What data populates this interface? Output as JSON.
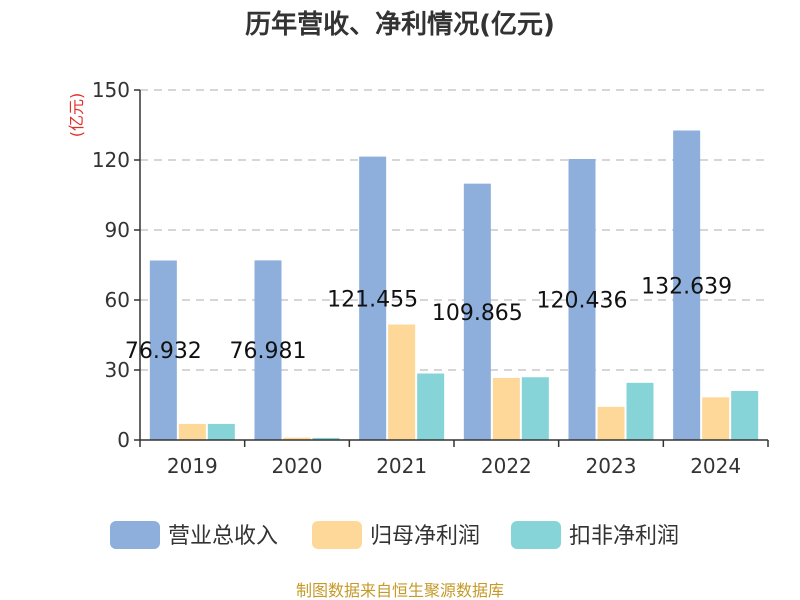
{
  "chart_data": {
    "type": "bar",
    "title": "历年营收、净利情况(亿元)",
    "ylabel": "(亿元)",
    "xlabel": "",
    "ylim": [
      0,
      150
    ],
    "yticks": [
      0,
      30,
      60,
      90,
      120,
      150
    ],
    "grid": true,
    "legend_position": "bottom",
    "categories": [
      "2019",
      "2020",
      "2021",
      "2022",
      "2023",
      "2024"
    ],
    "series": [
      {
        "name": "营业总收入",
        "color": "#8eaedc",
        "values": [
          76.932,
          76.981,
          121.455,
          109.865,
          120.436,
          132.639
        ]
      },
      {
        "name": "归母净利润",
        "color": "#fdd899",
        "values": [
          6.9,
          1.0,
          49.5,
          26.6,
          14.2,
          18.3
        ]
      },
      {
        "name": "扣非净利润",
        "color": "#87d4d8",
        "values": [
          6.9,
          0.9,
          28.5,
          26.9,
          24.5,
          21.0
        ]
      }
    ],
    "data_labels": {
      "series_index": 0,
      "texts": [
        "76.932",
        "76.981",
        "121.455",
        "109.865",
        "120.436",
        "132.639"
      ]
    }
  },
  "source": "制图数据来自恒生聚源数据库"
}
